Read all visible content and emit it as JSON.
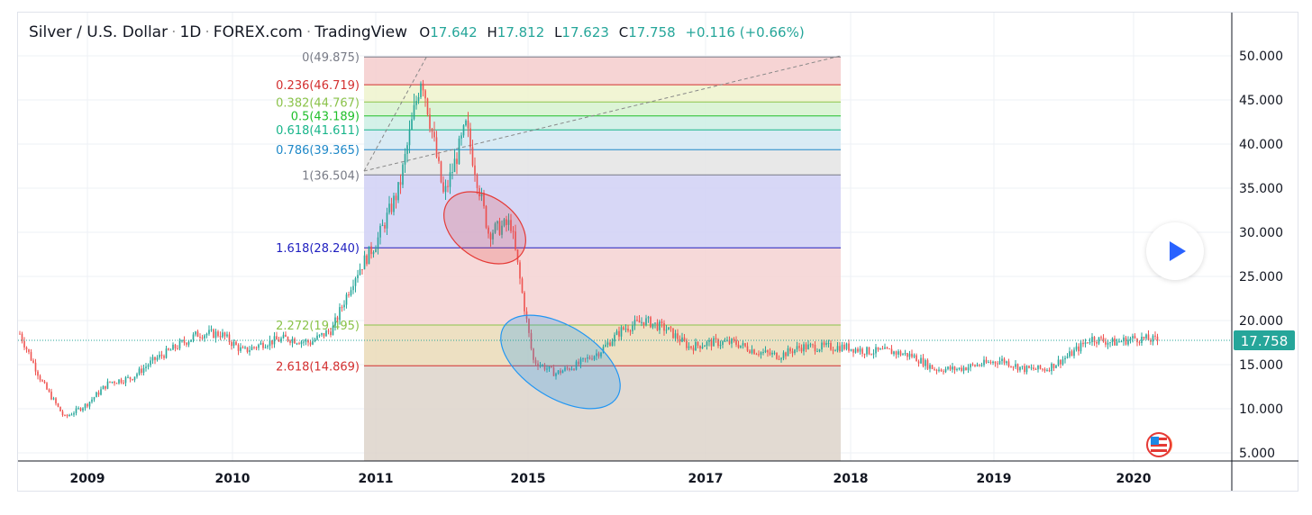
{
  "header": {
    "symbol": "Silver / U.S. Dollar",
    "interval": "1D",
    "exchange": "FOREX.com",
    "source": "TradingView",
    "ohlc": {
      "o_label": "O",
      "o": "17.642",
      "h_label": "H",
      "h": "17.812",
      "l_label": "L",
      "l": "17.623",
      "c_label": "C",
      "c": "17.758",
      "change": "+0.116 (+0.66%)"
    }
  },
  "colors": {
    "up": "#26a69a",
    "down": "#ef5350",
    "accent": "#26a69a"
  },
  "icons": {
    "play": "play-icon",
    "flag": "us-flag-icon"
  },
  "chart_data": {
    "type": "candlestick",
    "ylim": [
      5,
      50
    ],
    "yticks": [
      "50.000",
      "45.000",
      "40.000",
      "35.000",
      "30.000",
      "25.000",
      "20.000",
      "15.000",
      "10.000",
      "5.000"
    ],
    "ytick_values": [
      50,
      45,
      40,
      35,
      30,
      25,
      20,
      15,
      10,
      5
    ],
    "xticks": [
      "2009",
      "2010",
      "2011",
      "2015",
      "2017",
      "2018",
      "2019",
      "2020"
    ],
    "grid": true,
    "last_price": 17.758,
    "last_price_label": "17.758",
    "price_path": [
      18.5,
      13,
      9,
      10.5,
      13,
      13.5,
      15.5,
      17,
      18.5,
      18.5,
      16.5,
      17.5,
      18,
      17.5,
      19,
      25,
      29,
      35,
      48,
      34,
      42,
      30,
      31,
      15.5,
      14,
      15,
      16.5,
      19,
      20,
      19,
      17,
      17.5,
      17.5,
      16.5,
      16,
      17,
      17,
      17,
      16.5,
      16.5,
      16,
      14.5,
      14.5,
      15,
      15.5,
      14.5,
      14.5,
      16,
      18,
      17.5,
      18,
      17.758
    ],
    "fibonacci": [
      {
        "level": "0",
        "value": 49.875,
        "label": "0(49.875)",
        "color": "#787b86",
        "fill": "#f4cccc"
      },
      {
        "level": "0.236",
        "value": 46.719,
        "label": "0.236(46.719)",
        "color": "#d32f2f",
        "fill": "#eef3cc"
      },
      {
        "level": "0.382",
        "value": 44.767,
        "label": "0.382(44.767)",
        "color": "#8bc34a",
        "fill": "#d6f2cf"
      },
      {
        "level": "0.5",
        "value": 43.189,
        "label": "0.5(43.189)",
        "color": "#1fbf2a",
        "fill": "#cdefe4"
      },
      {
        "level": "0.618",
        "value": 41.611,
        "label": "0.618(41.611)",
        "color": "#17b58a",
        "fill": "#d2e8f2"
      },
      {
        "level": "0.786",
        "value": 39.365,
        "label": "0.786(39.365)",
        "color": "#1e88c8",
        "fill": "#e4e4e4"
      },
      {
        "level": "1",
        "value": 36.504,
        "label": "1(36.504)",
        "color": "#787b86",
        "fill": "#d0d0f4"
      },
      {
        "level": "1.618",
        "value": 28.24,
        "label": "1.618(28.240)",
        "color": "#2020c0",
        "fill": "#f4d2d2"
      },
      {
        "level": "2.272",
        "value": 19.495,
        "label": "2.272(19.495)",
        "color": "#8bc34a",
        "fill": "#eadbb7"
      },
      {
        "level": "2.618",
        "value": 14.869,
        "label": "2.618(14.869)",
        "color": "#d32f2f",
        "fill": "#ddd3ca"
      }
    ],
    "annotations": [
      {
        "shape": "ellipse",
        "color": "#e53935"
      },
      {
        "shape": "ellipse",
        "color": "#2196f3"
      }
    ]
  }
}
